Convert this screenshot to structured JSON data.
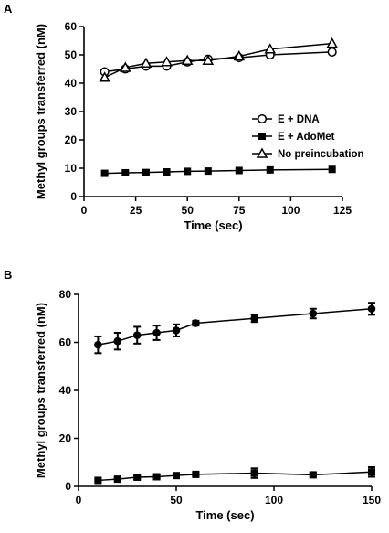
{
  "chart_data": [
    {
      "panel": "A",
      "type": "line",
      "xlabel": "Time (sec)",
      "ylabel": "Methyl groups transferred (nM)",
      "xlim": [
        0,
        125
      ],
      "ylim": [
        0,
        60
      ],
      "xticks": [
        0,
        25,
        50,
        75,
        100,
        125
      ],
      "yticks": [
        0,
        10,
        20,
        30,
        40,
        50,
        60
      ],
      "grid": false,
      "legend_position": "right",
      "series": [
        {
          "name": "E + DNA",
          "marker": "circle-open",
          "x": [
            10,
            20,
            30,
            40,
            50,
            60,
            75,
            90,
            120
          ],
          "y": [
            44,
            45,
            46,
            46,
            47.5,
            48.5,
            49,
            50,
            51
          ]
        },
        {
          "name": "E + AdoMet",
          "marker": "square-filled",
          "x": [
            10,
            20,
            30,
            40,
            50,
            60,
            75,
            90,
            120
          ],
          "y": [
            8.2,
            8.4,
            8.5,
            8.7,
            8.9,
            9.0,
            9.2,
            9.4,
            9.6
          ]
        },
        {
          "name": "No preincubation",
          "marker": "triangle-open",
          "x": [
            10,
            20,
            30,
            40,
            50,
            60,
            75,
            90,
            120
          ],
          "y": [
            42,
            45.5,
            47,
            47.5,
            48,
            48,
            49.5,
            52,
            54
          ]
        }
      ]
    },
    {
      "panel": "B",
      "type": "line",
      "xlabel": "Time (sec)",
      "ylabel": "Methyl groups transferred (nM)",
      "xlim": [
        0,
        150
      ],
      "ylim": [
        0,
        80
      ],
      "xticks": [
        0,
        50,
        100,
        150
      ],
      "yticks": [
        0,
        20,
        40,
        60,
        80
      ],
      "grid": false,
      "series": [
        {
          "marker": "circle-filled",
          "x": [
            10,
            20,
            30,
            40,
            50,
            60,
            90,
            120,
            150
          ],
          "y": [
            59,
            60.5,
            63,
            64,
            65,
            68,
            70,
            72,
            74
          ],
          "err": [
            3.5,
            3.5,
            3.5,
            3,
            2.5,
            1,
            1.5,
            2,
            2.5
          ]
        },
        {
          "marker": "square-filled",
          "x": [
            10,
            20,
            30,
            40,
            50,
            60,
            90,
            120,
            150
          ],
          "y": [
            2.5,
            3,
            3.8,
            4,
            4.5,
            5,
            5.5,
            4.8,
            6
          ],
          "err": [
            0.6,
            0.6,
            0.6,
            0.7,
            0.8,
            0.8,
            2,
            0.8,
            2
          ]
        }
      ]
    }
  ]
}
